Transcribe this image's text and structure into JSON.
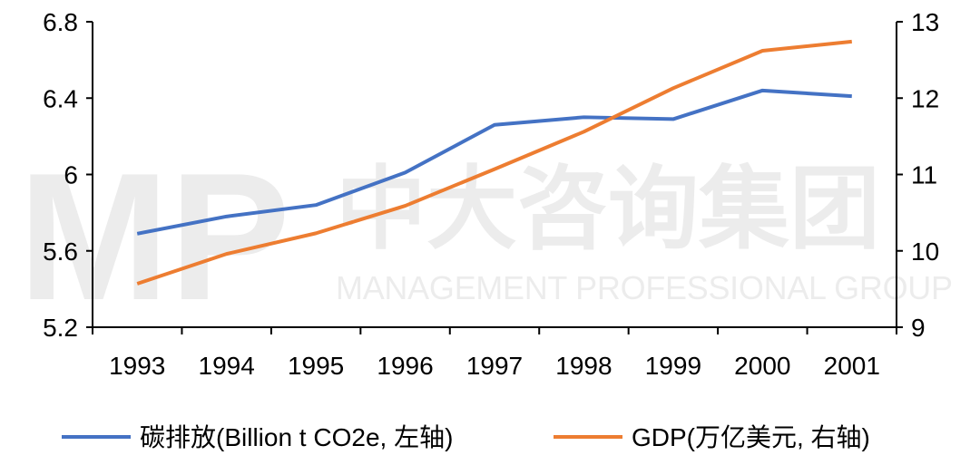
{
  "chart_data": {
    "type": "line",
    "categories": [
      "1993",
      "1994",
      "1995",
      "1996",
      "1997",
      "1998",
      "1999",
      "2000",
      "2001"
    ],
    "series": [
      {
        "name": "碳排放(Billion t CO2e, 左轴)",
        "axis": "left",
        "color": "#4472C4",
        "values": [
          5.69,
          5.78,
          5.84,
          6.01,
          6.26,
          6.3,
          6.29,
          6.44,
          6.41
        ]
      },
      {
        "name": "GDP(万亿美元, 右轴)",
        "axis": "right",
        "color": "#ED7D31",
        "values": [
          9.57,
          9.96,
          10.23,
          10.59,
          11.07,
          11.56,
          12.13,
          12.62,
          12.74
        ]
      }
    ],
    "y_left": {
      "range": [
        5.2,
        6.8
      ],
      "ticks": [
        "5.2",
        "5.6",
        "6",
        "6.4",
        "6.8"
      ]
    },
    "y_right": {
      "range": [
        9,
        13
      ],
      "ticks": [
        "9",
        "10",
        "11",
        "12",
        "13"
      ]
    },
    "grid": false,
    "legend_position": "bottom"
  },
  "watermark": {
    "logo": "MP",
    "text_cn": "中大咨询集团",
    "text_en": "MANAGEMENT PROFESSIONAL GROUP"
  }
}
